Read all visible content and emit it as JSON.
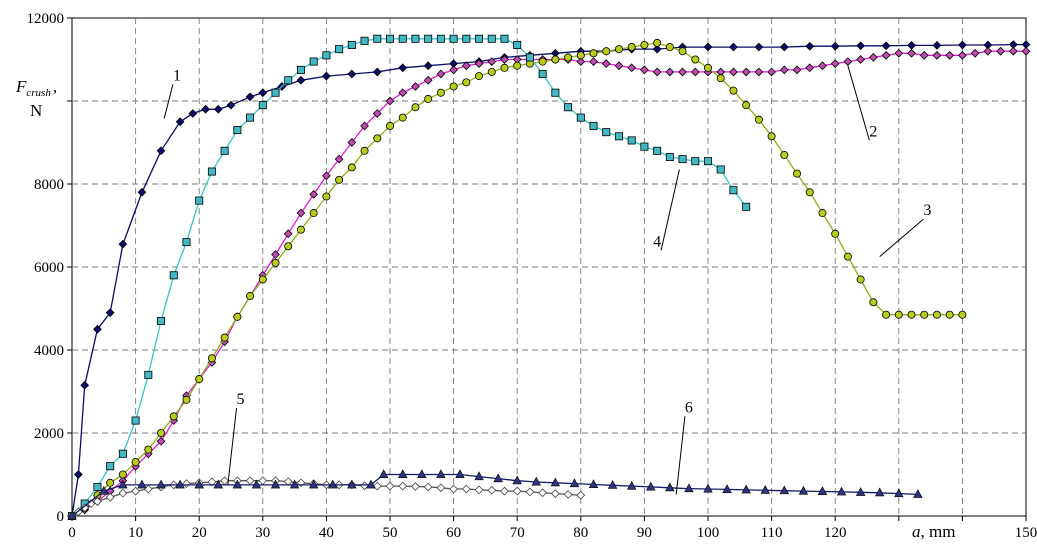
{
  "chart_data": {
    "type": "line",
    "xlabel_var": "a",
    "xlabel_unit": ", mm",
    "ylabel_var": "F",
    "ylabel_sub": "crush",
    "ylabel_sep": ",",
    "ylabel_unit": "N",
    "xlim": [
      0,
      150
    ],
    "ylim": [
      0,
      12000
    ],
    "x_ticks": [
      0,
      10,
      20,
      30,
      40,
      50,
      60,
      70,
      80,
      90,
      100,
      110,
      120,
      130,
      140,
      150
    ],
    "x_tick_labels": [
      "0",
      "10",
      "20",
      "30",
      "40",
      "50",
      "60",
      "70",
      "80",
      "90",
      "100",
      "110",
      "120",
      "",
      "",
      "150"
    ],
    "y_ticks": [
      0,
      2000,
      4000,
      6000,
      8000,
      10000,
      12000
    ],
    "y_tick_labels": [
      "0",
      "2000",
      "4000",
      "6000",
      "8000",
      "",
      "12000"
    ],
    "grid": true,
    "series": [
      {
        "name": "1",
        "color": "#0b0b6e",
        "marker": "diamond",
        "marker_fill": "#0b0b6e",
        "x": [
          0,
          1,
          2,
          4,
          6,
          8,
          11,
          14,
          17,
          19,
          21,
          23,
          25,
          28,
          30,
          33,
          36,
          40,
          44,
          48,
          52,
          56,
          60,
          64,
          68,
          72,
          76,
          80,
          84,
          88,
          92,
          96,
          100,
          104,
          108,
          112,
          116,
          120,
          124,
          128,
          132,
          136,
          140,
          144,
          148,
          150
        ],
        "y": [
          0,
          1000,
          3150,
          4500,
          4900,
          6550,
          7800,
          8800,
          9500,
          9700,
          9800,
          9800,
          9900,
          10100,
          10200,
          10350,
          10500,
          10600,
          10650,
          10700,
          10800,
          10850,
          10900,
          10950,
          11050,
          11100,
          11150,
          11200,
          11200,
          11250,
          11250,
          11300,
          11300,
          11300,
          11300,
          11300,
          11320,
          11320,
          11330,
          11330,
          11340,
          11340,
          11350,
          11350,
          11360,
          11360
        ]
      },
      {
        "name": "2",
        "color": "#e01bd6",
        "marker": "diamond",
        "marker_fill": "#c24ab3",
        "x": [
          0,
          2,
          4,
          6,
          8,
          10,
          12,
          14,
          16,
          18,
          20,
          22,
          24,
          26,
          28,
          30,
          32,
          34,
          36,
          38,
          40,
          42,
          44,
          46,
          48,
          50,
          52,
          54,
          56,
          58,
          60,
          62,
          64,
          66,
          68,
          70,
          72,
          74,
          76,
          78,
          80,
          82,
          84,
          86,
          88,
          90,
          92,
          94,
          96,
          98,
          100,
          102,
          104,
          106,
          108,
          110,
          112,
          114,
          116,
          118,
          120,
          122,
          124,
          126,
          128,
          130,
          132,
          134,
          136,
          138,
          140,
          142,
          144,
          146,
          148,
          150
        ],
        "y": [
          0,
          150,
          350,
          600,
          850,
          1200,
          1500,
          1800,
          2300,
          2900,
          3300,
          3700,
          4200,
          4800,
          5300,
          5800,
          6300,
          6800,
          7300,
          7750,
          8200,
          8600,
          9000,
          9400,
          9700,
          10000,
          10200,
          10350,
          10500,
          10650,
          10750,
          10850,
          10900,
          10950,
          11000,
          11000,
          11000,
          11000,
          11000,
          11000,
          10950,
          10950,
          10900,
          10850,
          10800,
          10750,
          10700,
          10700,
          10700,
          10700,
          10700,
          10700,
          10700,
          10700,
          10700,
          10700,
          10750,
          10750,
          10800,
          10850,
          10900,
          10950,
          11000,
          11050,
          11100,
          11150,
          11150,
          11100,
          11100,
          11100,
          11100,
          11150,
          11200,
          11200,
          11200,
          11200
        ]
      },
      {
        "name": "3",
        "color": "#8fb012",
        "marker": "circle",
        "marker_fill": "#b9cc1c",
        "x": [
          0,
          2,
          4,
          6,
          8,
          10,
          12,
          14,
          16,
          18,
          20,
          22,
          24,
          26,
          28,
          30,
          32,
          34,
          36,
          38,
          40,
          42,
          44,
          46,
          48,
          50,
          52,
          54,
          56,
          58,
          60,
          62,
          64,
          66,
          68,
          70,
          72,
          74,
          76,
          78,
          80,
          82,
          84,
          86,
          88,
          90,
          92,
          94,
          96,
          98,
          100,
          102,
          104,
          106,
          108,
          110,
          112,
          114,
          116,
          118,
          120,
          122,
          124,
          126,
          128,
          130,
          132,
          134,
          136,
          138,
          140
        ],
        "y": [
          0,
          200,
          500,
          800,
          1000,
          1300,
          1600,
          2000,
          2400,
          2800,
          3300,
          3800,
          4300,
          4800,
          5300,
          5700,
          6100,
          6500,
          6900,
          7300,
          7700,
          8100,
          8400,
          8800,
          9100,
          9400,
          9600,
          9850,
          10050,
          10200,
          10350,
          10450,
          10600,
          10700,
          10800,
          10850,
          10900,
          10950,
          11000,
          11050,
          11100,
          11150,
          11200,
          11250,
          11300,
          11350,
          11400,
          11300,
          11200,
          11000,
          10800,
          10550,
          10250,
          9900,
          9550,
          9150,
          8700,
          8250,
          7800,
          7300,
          6800,
          6250,
          5700,
          5150,
          4850,
          4850,
          4850,
          4850,
          4850,
          4850,
          4850
        ]
      },
      {
        "name": "4",
        "color": "#33c7c9",
        "marker": "square",
        "marker_fill": "#41b8c4",
        "x": [
          0,
          2,
          4,
          6,
          8,
          10,
          12,
          14,
          16,
          18,
          20,
          22,
          24,
          26,
          28,
          30,
          32,
          34,
          36,
          38,
          40,
          42,
          44,
          46,
          48,
          50,
          52,
          54,
          56,
          58,
          60,
          62,
          64,
          66,
          68,
          70,
          72,
          74,
          76,
          78,
          80,
          82,
          84,
          86,
          88,
          90,
          92,
          94,
          96,
          98,
          100,
          102,
          104,
          106
        ],
        "y": [
          0,
          300,
          700,
          1200,
          1500,
          2300,
          3400,
          4700,
          5800,
          6600,
          7600,
          8300,
          8800,
          9300,
          9600,
          9900,
          10200,
          10500,
          10750,
          10950,
          11100,
          11250,
          11350,
          11450,
          11500,
          11500,
          11500,
          11500,
          11500,
          11500,
          11500,
          11500,
          11500,
          11500,
          11500,
          11350,
          11050,
          10650,
          10200,
          9850,
          9600,
          9400,
          9250,
          9150,
          9050,
          8900,
          8800,
          8650,
          8600,
          8550,
          8550,
          8350,
          7850,
          7450
        ]
      },
      {
        "name": "5",
        "color": "#555555",
        "marker": "diamond-open",
        "marker_fill": "#ffffff",
        "x": [
          0,
          1,
          2,
          3,
          4,
          6,
          8,
          10,
          12,
          14,
          16,
          18,
          20,
          22,
          24,
          26,
          28,
          30,
          32,
          34,
          36,
          38,
          40,
          42,
          44,
          46,
          48,
          50,
          52,
          54,
          56,
          58,
          60,
          62,
          64,
          66,
          68,
          70,
          72,
          74,
          76,
          78,
          80
        ],
        "y": [
          0,
          100,
          200,
          300,
          350,
          450,
          550,
          600,
          650,
          700,
          750,
          780,
          800,
          820,
          850,
          850,
          850,
          850,
          850,
          830,
          800,
          780,
          750,
          750,
          750,
          730,
          720,
          720,
          720,
          710,
          700,
          680,
          650,
          650,
          630,
          620,
          600,
          600,
          580,
          560,
          540,
          520,
          500
        ]
      },
      {
        "name": "6",
        "color": "#151a6b",
        "marker": "triangle",
        "marker_fill": "#2d3480",
        "x": [
          0,
          5,
          8,
          11,
          14,
          17,
          20,
          23,
          26,
          29,
          32,
          35,
          38,
          41,
          44,
          47,
          49,
          52,
          55,
          58,
          61,
          64,
          67,
          70,
          73,
          76,
          79,
          82,
          85,
          88,
          91,
          94,
          97,
          100,
          103,
          106,
          109,
          112,
          115,
          118,
          121,
          124,
          127,
          130,
          133
        ],
        "y": [
          0,
          600,
          750,
          750,
          750,
          750,
          750,
          750,
          750,
          750,
          750,
          750,
          750,
          750,
          750,
          750,
          1000,
          1000,
          1000,
          1000,
          1000,
          950,
          900,
          850,
          820,
          800,
          780,
          760,
          740,
          720,
          700,
          680,
          660,
          650,
          640,
          630,
          620,
          610,
          600,
          590,
          580,
          570,
          560,
          540,
          520
        ]
      }
    ],
    "annotations": [
      {
        "label": "1",
        "x": 16.5,
        "y": 10500,
        "tx": 14.5,
        "ty": 9580
      },
      {
        "label": "2",
        "x": 126.0,
        "y": 9150,
        "tx": 122.0,
        "ty": 10850
      },
      {
        "label": "3",
        "x": 134.5,
        "y": 7250,
        "tx": 127.0,
        "ty": 6250
      },
      {
        "label": "4",
        "x": 92.0,
        "y": 6500,
        "tx": 95.5,
        "ty": 8350
      },
      {
        "label": "5",
        "x": 26.5,
        "y": 2700,
        "tx": 24.5,
        "ty": 750
      },
      {
        "label": "6",
        "x": 97.0,
        "y": 2500,
        "tx": 95.0,
        "ty": 520
      }
    ]
  }
}
